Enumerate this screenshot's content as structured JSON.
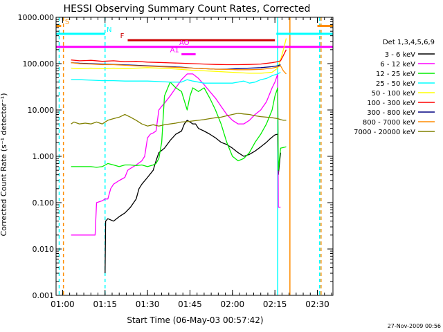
{
  "chart_data": {
    "type": "line",
    "title": "HESSI Observing Summary Count Rates, Corrected",
    "ylabel": "Corrected Count Rate (s⁻¹ detector⁻¹)",
    "xlabel": "Start Time (06-May-03 00:57:42)",
    "yscale": "log",
    "ylim": [
      0.001,
      1000
    ],
    "xlim_min": [
      57.7,
      155.5
    ],
    "x_unit": "minutes after 00:00 UT, 06-May-03",
    "y_ticks": [
      {
        "v": 0.001,
        "label": "0.001"
      },
      {
        "v": 0.01,
        "label": "0.010"
      },
      {
        "v": 0.1,
        "label": "0.100"
      },
      {
        "v": 1,
        "label": "1.000"
      },
      {
        "v": 10,
        "label": "10.000"
      },
      {
        "v": 100,
        "label": "100.000"
      },
      {
        "v": 1000,
        "label": "1000.000"
      }
    ],
    "x_ticks": [
      {
        "v": 60,
        "label": "01:00"
      },
      {
        "v": 75,
        "label": "01:15"
      },
      {
        "v": 90,
        "label": "01:30"
      },
      {
        "v": 105,
        "label": "01:45"
      },
      {
        "v": 120,
        "label": "02:00"
      },
      {
        "v": 135,
        "label": "02:15"
      },
      {
        "v": 150,
        "label": "02:30"
      }
    ],
    "legend_title": "Det 1,3,4,5,6,9",
    "legend_placement": "right",
    "series": [
      {
        "name": "3 - 6 keV",
        "color": "#000000",
        "x": [
          75,
          75.2,
          76,
          78,
          80,
          82,
          84,
          86,
          87,
          88,
          90,
          92,
          93,
          94,
          96,
          98,
          100,
          102,
          103,
          104,
          105,
          106,
          107,
          108,
          110,
          112,
          114,
          116,
          118,
          120,
          122,
          124,
          126,
          128,
          130,
          132,
          133,
          134,
          135,
          136,
          136.2,
          137
        ],
        "y": [
          0.003,
          0.04,
          0.045,
          0.04,
          0.05,
          0.06,
          0.08,
          0.12,
          0.2,
          0.25,
          0.35,
          0.5,
          0.8,
          1.2,
          1.5,
          2.2,
          3,
          3.5,
          5,
          6,
          5.5,
          5,
          5,
          4,
          3.5,
          3,
          2.5,
          2,
          1.8,
          1.5,
          1.2,
          1.0,
          1.1,
          1.3,
          1.6,
          2,
          2.3,
          2.6,
          2.9,
          3,
          0.4,
          1.2
        ]
      },
      {
        "name": "6 - 12 keV",
        "color": "#ff00ff",
        "x": [
          63,
          64,
          66,
          68,
          70,
          71.5,
          72,
          74,
          75,
          76,
          77,
          78,
          80,
          82,
          83,
          84,
          86,
          88,
          89,
          90,
          91,
          92,
          93,
          94,
          95,
          96,
          98,
          100,
          102,
          104,
          106,
          108,
          110,
          112,
          114,
          116,
          118,
          120,
          122,
          124,
          126,
          128,
          130,
          132,
          134,
          135,
          136,
          136.2,
          137
        ],
        "y": [
          0.02,
          0.02,
          0.02,
          0.02,
          0.02,
          0.02,
          0.1,
          0.11,
          0.12,
          0.12,
          0.2,
          0.25,
          0.3,
          0.35,
          0.5,
          0.55,
          0.65,
          0.8,
          1.0,
          2.5,
          3,
          3.2,
          3.5,
          10,
          12,
          14,
          20,
          30,
          45,
          60,
          60,
          48,
          35,
          25,
          18,
          12,
          8,
          6,
          5,
          5,
          6,
          8,
          10,
          15,
          30,
          40,
          60,
          0.08,
          0.08
        ]
      },
      {
        "name": "12 - 25 keV",
        "color": "#00ee00",
        "x": [
          63,
          66,
          70,
          72,
          74,
          76,
          78,
          80,
          82,
          84,
          86,
          88,
          90,
          92,
          93,
          94,
          95,
          96,
          98,
          100,
          102,
          104,
          105,
          106,
          108,
          110,
          112,
          114,
          116,
          118,
          120,
          122,
          124,
          126,
          128,
          130,
          132,
          134,
          135,
          136,
          136.2,
          137,
          139
        ],
        "y": [
          0.6,
          0.6,
          0.6,
          0.58,
          0.6,
          0.7,
          0.65,
          0.6,
          0.65,
          0.65,
          0.63,
          0.65,
          0.6,
          0.65,
          0.7,
          0.9,
          2,
          20,
          40,
          30,
          25,
          10,
          20,
          30,
          25,
          30,
          18,
          10,
          5,
          2,
          1,
          0.8,
          0.9,
          1.2,
          2,
          3,
          5,
          10,
          20,
          30,
          0.5,
          1.5,
          1.6
        ]
      },
      {
        "name": "25 - 50 keV",
        "color": "#00ffff",
        "x": [
          63,
          66,
          70,
          74,
          78,
          82,
          86,
          90,
          94,
          98,
          102,
          104,
          106,
          108,
          110,
          112,
          114,
          116,
          118,
          120,
          122,
          124,
          126,
          128,
          130,
          132,
          134,
          136,
          137
        ],
        "y": [
          45,
          45,
          44,
          43,
          43,
          42,
          42,
          42,
          41,
          40,
          40,
          45,
          42,
          40,
          38,
          38,
          38,
          38,
          38,
          38,
          40,
          42,
          38,
          40,
          45,
          48,
          55,
          60,
          65
        ]
      },
      {
        "name": "50 - 100 keV",
        "color": "#ffff00",
        "x": [
          63,
          66,
          70,
          74,
          78,
          82,
          86,
          90,
          94,
          98,
          102,
          106,
          110,
          114,
          118,
          122,
          126,
          130,
          134,
          136,
          137,
          138,
          139
        ],
        "y": [
          80,
          78,
          80,
          78,
          80,
          78,
          80,
          82,
          80,
          78,
          75,
          72,
          70,
          68,
          66,
          64,
          62,
          62,
          65,
          80,
          120,
          200,
          350
        ]
      },
      {
        "name": "100 - 300 keV",
        "color": "#ff0000",
        "x": [
          63,
          66,
          70,
          74,
          78,
          82,
          86,
          90,
          94,
          98,
          102,
          106,
          110,
          114,
          118,
          122,
          126,
          130,
          134,
          136,
          137,
          138,
          139
        ],
        "y": [
          120,
          115,
          118,
          112,
          115,
          110,
          112,
          108,
          106,
          104,
          102,
          100,
          98,
          96,
          95,
          95,
          96,
          98,
          105,
          110,
          115,
          150,
          200
        ]
      },
      {
        "name": "300 - 800 keV",
        "color": "#000080",
        "x": [
          63,
          66,
          70,
          74,
          78,
          82,
          86,
          90,
          94,
          98,
          102,
          106,
          110,
          114,
          118,
          122,
          126,
          130,
          134,
          136,
          137
        ],
        "y": [
          105,
          102,
          100,
          98,
          96,
          94,
          92,
          90,
          88,
          86,
          84,
          80,
          78,
          76,
          76,
          78,
          80,
          82,
          86,
          90,
          95
        ]
      },
      {
        "name": "800 - 7000 keV",
        "color": "#ff8c00",
        "x": [
          63,
          66,
          70,
          74,
          78,
          82,
          86,
          90,
          94,
          98,
          102,
          106,
          110,
          114,
          118,
          122,
          126,
          130,
          134,
          136,
          137,
          138,
          139
        ],
        "y": [
          105,
          100,
          98,
          95,
          95,
          92,
          90,
          88,
          86,
          84,
          82,
          80,
          78,
          76,
          75,
          74,
          74,
          75,
          80,
          85,
          90,
          70,
          60
        ]
      },
      {
        "name": "7000 - 20000 keV",
        "color": "#808000",
        "x": [
          63,
          64,
          66,
          68,
          70,
          72,
          74,
          76,
          78,
          80,
          82,
          84,
          86,
          88,
          90,
          92,
          94,
          96,
          98,
          100,
          102,
          104,
          106,
          108,
          110,
          112,
          114,
          116,
          118,
          120,
          122,
          124,
          126,
          128,
          130,
          132,
          134,
          136,
          137,
          138,
          139
        ],
        "y": [
          5,
          5.5,
          5,
          5.2,
          5,
          5.5,
          5,
          6,
          6.5,
          7,
          8,
          7,
          6,
          5,
          4.5,
          4.8,
          4.5,
          4.8,
          5,
          5.2,
          5.5,
          5.6,
          5.8,
          6,
          6.2,
          6.5,
          6.8,
          7,
          7.5,
          8,
          8.5,
          8.2,
          8,
          7.5,
          7.2,
          7,
          6.8,
          6.5,
          6.2,
          6,
          6
        ]
      }
    ],
    "status_bars": [
      {
        "label": "S",
        "color": "#ff8c00",
        "y": 650,
        "segments": [
          [
            57.7,
            59.5
          ],
          [
            150,
            155.5
          ]
        ]
      },
      {
        "label": "N",
        "color": "#00ffff",
        "y": 440,
        "segments": [
          [
            57.7,
            75
          ],
          [
            135.5,
            155.5
          ]
        ]
      },
      {
        "label": "F",
        "color": "#cc0000",
        "y": 320,
        "segments": [
          [
            83,
            135
          ]
        ]
      },
      {
        "label": "AO",
        "color": "#ff00ff",
        "y": 230,
        "segments": [
          [
            57.7,
            155.5
          ]
        ]
      },
      {
        "label": "A1",
        "color": "#ff00ff",
        "y": 160,
        "segments": [
          [
            102,
            107
          ]
        ]
      }
    ],
    "vertical_lines": [
      {
        "x": 58.8,
        "color": "#00ffff",
        "style": "dashed"
      },
      {
        "x": 60.3,
        "color": "#ff8c00",
        "style": "dashed"
      },
      {
        "x": 75,
        "color": "#00ffff",
        "style": "dashed"
      },
      {
        "x": 136,
        "color": "#00ffff",
        "style": "solid"
      },
      {
        "x": 140.3,
        "color": "#ff8c00",
        "style": "solid"
      },
      {
        "x": 150.8,
        "color": "#00ffff",
        "style": "dashed"
      },
      {
        "x": 151.3,
        "color": "#ff8c00",
        "style": "dashed"
      }
    ],
    "footer_timestamp": "27-Nov-2009 00:56"
  }
}
